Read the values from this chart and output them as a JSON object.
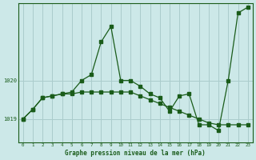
{
  "title": "Graphe pression niveau de la mer (hPa)",
  "bg_color": "#cce8e8",
  "line_color": "#1a5c1a",
  "grid_color": "#aacccc",
  "xlim": [
    -0.5,
    23.5
  ],
  "ylim": [
    1018.4,
    1022.0
  ],
  "yticks": [
    1019,
    1020
  ],
  "xticks": [
    0,
    1,
    2,
    3,
    4,
    5,
    6,
    7,
    8,
    9,
    10,
    11,
    12,
    13,
    14,
    15,
    16,
    17,
    18,
    19,
    20,
    21,
    22,
    23
  ],
  "series1_x": [
    0,
    1,
    2,
    3,
    4,
    5,
    6,
    7,
    8,
    9,
    10,
    11,
    12,
    13,
    14,
    15,
    16,
    17,
    18,
    19,
    20,
    21,
    22,
    23
  ],
  "series1_y": [
    1019.0,
    1019.25,
    1019.55,
    1019.6,
    1019.65,
    1019.65,
    1019.7,
    1019.7,
    1019.7,
    1019.7,
    1019.7,
    1019.7,
    1019.6,
    1019.5,
    1019.4,
    1019.3,
    1019.2,
    1019.1,
    1019.0,
    1018.9,
    1018.85,
    1018.85,
    1018.85,
    1018.85
  ],
  "series2_x": [
    0,
    1,
    2,
    3,
    4,
    5,
    6,
    7,
    8,
    9,
    10,
    11,
    12,
    13,
    14,
    15,
    16,
    17,
    18,
    19,
    20,
    21,
    22,
    23
  ],
  "series2_y": [
    1019.0,
    1019.25,
    1019.55,
    1019.6,
    1019.65,
    1019.7,
    1020.0,
    1020.15,
    1021.0,
    1021.4,
    1020.0,
    1020.0,
    1019.85,
    1019.65,
    1019.55,
    1019.2,
    1019.6,
    1019.65,
    1018.85,
    1018.85,
    1018.7,
    1020.0,
    1021.75,
    1021.9
  ]
}
